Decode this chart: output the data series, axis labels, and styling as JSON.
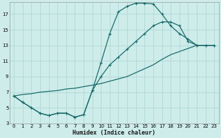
{
  "xlabel": "Humidex (Indice chaleur)",
  "bg_color": "#cdecea",
  "grid_color": "#b0d8d4",
  "line_color": "#1a6b6b",
  "xlim": [
    -0.5,
    23.5
  ],
  "ylim": [
    3,
    18.5
  ],
  "xticks": [
    0,
    1,
    2,
    3,
    4,
    5,
    6,
    7,
    8,
    9,
    10,
    11,
    12,
    13,
    14,
    15,
    16,
    17,
    18,
    19,
    20,
    21,
    22,
    23
  ],
  "yticks": [
    3,
    5,
    7,
    9,
    11,
    13,
    15,
    17
  ],
  "line1_x": [
    0,
    1,
    2,
    3,
    4,
    5,
    6,
    7,
    8,
    9,
    10,
    11,
    12,
    13,
    14,
    15,
    16,
    17,
    18,
    19,
    20,
    21,
    22,
    23
  ],
  "line1_y": [
    6.5,
    5.7,
    5.0,
    4.3,
    4.0,
    4.3,
    4.3,
    3.8,
    4.1,
    7.2,
    10.8,
    14.5,
    17.3,
    18.0,
    18.4,
    18.4,
    18.3,
    17.0,
    15.5,
    14.5,
    13.8,
    13.0,
    13.0,
    13.0
  ],
  "line2_x": [
    0,
    1,
    2,
    3,
    4,
    5,
    6,
    7,
    8,
    9,
    10,
    11,
    12,
    13,
    14,
    15,
    16,
    17,
    18,
    19,
    20,
    21,
    22,
    23
  ],
  "line2_y": [
    6.5,
    6.7,
    6.8,
    7.0,
    7.1,
    7.2,
    7.4,
    7.5,
    7.7,
    7.9,
    8.1,
    8.4,
    8.7,
    9.0,
    9.5,
    10.0,
    10.5,
    11.2,
    11.8,
    12.2,
    12.6,
    13.0,
    13.0,
    13.0
  ],
  "line3_x": [
    0,
    1,
    2,
    3,
    4,
    5,
    6,
    7,
    8,
    9,
    10,
    11,
    12,
    13,
    14,
    15,
    16,
    17,
    18,
    19,
    20,
    21,
    22,
    23
  ],
  "line3_y": [
    6.5,
    5.7,
    5.0,
    4.3,
    4.0,
    4.3,
    4.3,
    3.8,
    4.1,
    7.2,
    9.0,
    10.5,
    11.5,
    12.5,
    13.5,
    14.5,
    15.5,
    16.0,
    16.0,
    15.5,
    13.5,
    13.0,
    13.0,
    13.0
  ]
}
